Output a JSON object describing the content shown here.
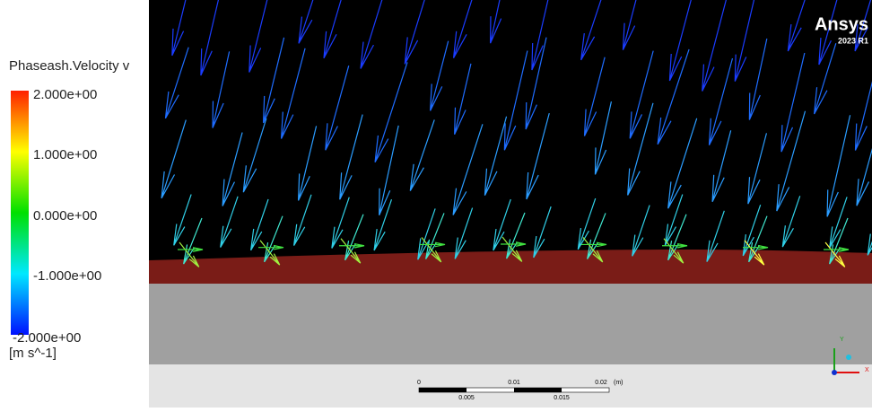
{
  "legend": {
    "title": "Phaseash.Velocity v",
    "labels": [
      "2.000e+00",
      "1.000e+00",
      "0.000e+00",
      "-1.000e+00",
      "-2.000e+00"
    ],
    "unit": "[m s^-1]"
  },
  "logo": {
    "name": "Ansys",
    "version": "2023 R1"
  },
  "scale_bar": {
    "top_labels": [
      "0",
      "0.01",
      "0.02"
    ],
    "bottom_labels": [
      "0.005",
      "0.015"
    ],
    "unit": "(m)"
  },
  "axes": {
    "y": "Y",
    "x": "X"
  }
}
